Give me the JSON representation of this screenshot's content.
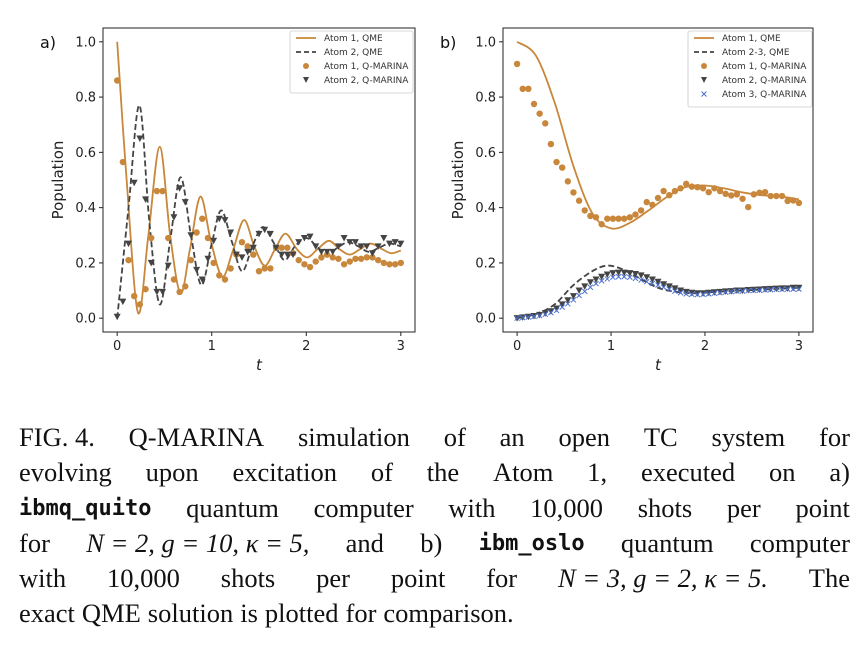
{
  "colors": {
    "atom1": "#c8873a",
    "atom2": "#444444",
    "atom3": "#4a6fd0"
  },
  "chart_data": [
    {
      "type": "line",
      "panel_label": "a)",
      "xlabel": "t",
      "ylabel": "Population",
      "xlim": [
        -0.15,
        3.15
      ],
      "ylim": [
        -0.05,
        1.05
      ],
      "xticks": [
        "0",
        "1",
        "2",
        "3"
      ],
      "xtick_values": [
        0,
        1,
        2,
        3
      ],
      "yticks": [
        "0.0",
        "0.2",
        "0.4",
        "0.6",
        "0.8",
        "1.0"
      ],
      "ytick_values": [
        0,
        0.2,
        0.4,
        0.6,
        0.8,
        1.0
      ],
      "grid": false,
      "legend_position": "top-right",
      "series": [
        {
          "name": "Atom 1, QME",
          "style": "solid",
          "color": "#c8873a",
          "x": [
            0,
            0.1,
            0.22,
            0.33,
            0.45,
            0.56,
            0.67,
            0.77,
            0.88,
            0.99,
            1.11,
            1.22,
            1.34,
            1.45,
            1.56,
            1.67,
            1.78,
            1.9,
            2.01,
            2.12,
            2.24,
            2.35,
            2.46,
            2.57,
            2.68,
            2.8,
            2.9,
            3.0
          ],
          "y": [
            1.0,
            0.5,
            0.02,
            0.3,
            0.62,
            0.3,
            0.09,
            0.25,
            0.44,
            0.28,
            0.15,
            0.24,
            0.355,
            0.26,
            0.19,
            0.25,
            0.306,
            0.25,
            0.22,
            0.25,
            0.28,
            0.25,
            0.23,
            0.25,
            0.27,
            0.25,
            0.235,
            0.245
          ]
        },
        {
          "name": "Atom 2, QME",
          "style": "dashed",
          "color": "#444444",
          "x": [
            0,
            0.12,
            0.235,
            0.34,
            0.45,
            0.56,
            0.67,
            0.78,
            0.89,
            1.0,
            1.1,
            1.21,
            1.32,
            1.43,
            1.54,
            1.66,
            1.77,
            1.88,
            2.0,
            2.11,
            2.22,
            2.33,
            2.44,
            2.55,
            2.66,
            2.77,
            2.88,
            3.0
          ],
          "y": [
            0,
            0.4,
            0.77,
            0.35,
            0.05,
            0.28,
            0.51,
            0.3,
            0.12,
            0.27,
            0.39,
            0.28,
            0.17,
            0.26,
            0.33,
            0.27,
            0.21,
            0.26,
            0.29,
            0.26,
            0.23,
            0.255,
            0.275,
            0.26,
            0.24,
            0.255,
            0.27,
            0.26
          ]
        },
        {
          "name": "Atom 1, Q-MARINA",
          "marker": "circle",
          "color": "#c8873a",
          "x": [
            0,
            0.06,
            0.12,
            0.18,
            0.24,
            0.3,
            0.36,
            0.42,
            0.48,
            0.54,
            0.6,
            0.66,
            0.72,
            0.78,
            0.84,
            0.9,
            0.96,
            1.02,
            1.08,
            1.14,
            1.2,
            1.26,
            1.32,
            1.38,
            1.44,
            1.5,
            1.56,
            1.62,
            1.68,
            1.74,
            1.8,
            1.86,
            1.92,
            1.98,
            2.04,
            2.1,
            2.16,
            2.22,
            2.28,
            2.34,
            2.4,
            2.46,
            2.52,
            2.58,
            2.64,
            2.7,
            2.76,
            2.82,
            2.88,
            2.94,
            3.0
          ],
          "y": [
            0.86,
            0.565,
            0.21,
            0.08,
            0.05,
            0.105,
            0.29,
            0.46,
            0.46,
            0.29,
            0.14,
            0.095,
            0.115,
            0.21,
            0.31,
            0.36,
            0.29,
            0.2,
            0.155,
            0.14,
            0.18,
            0.23,
            0.275,
            0.26,
            0.23,
            0.17,
            0.18,
            0.18,
            0.255,
            0.255,
            0.255,
            0.235,
            0.21,
            0.195,
            0.185,
            0.205,
            0.22,
            0.23,
            0.22,
            0.215,
            0.195,
            0.205,
            0.215,
            0.215,
            0.22,
            0.22,
            0.21,
            0.2,
            0.195,
            0.195,
            0.2
          ]
        },
        {
          "name": "Atom 2, Q-MARINA",
          "marker": "triangle-down",
          "color": "#444444",
          "x": [
            0,
            0.06,
            0.12,
            0.18,
            0.24,
            0.3,
            0.36,
            0.42,
            0.48,
            0.54,
            0.6,
            0.66,
            0.72,
            0.78,
            0.84,
            0.9,
            0.96,
            1.02,
            1.08,
            1.14,
            1.2,
            1.26,
            1.32,
            1.38,
            1.44,
            1.5,
            1.56,
            1.62,
            1.68,
            1.74,
            1.8,
            1.86,
            1.92,
            1.98,
            2.04,
            2.1,
            2.16,
            2.22,
            2.28,
            2.34,
            2.4,
            2.46,
            2.52,
            2.58,
            2.64,
            2.7,
            2.76,
            2.82,
            2.88,
            2.94,
            3.0
          ],
          "y": [
            0.005,
            0.06,
            0.27,
            0.49,
            0.65,
            0.43,
            0.2,
            0.095,
            0.095,
            0.19,
            0.365,
            0.47,
            0.42,
            0.3,
            0.175,
            0.14,
            0.215,
            0.28,
            0.36,
            0.355,
            0.31,
            0.23,
            0.22,
            0.24,
            0.255,
            0.305,
            0.32,
            0.305,
            0.255,
            0.23,
            0.23,
            0.23,
            0.275,
            0.29,
            0.295,
            0.26,
            0.24,
            0.24,
            0.24,
            0.26,
            0.29,
            0.275,
            0.275,
            0.26,
            0.26,
            0.235,
            0.26,
            0.29,
            0.27,
            0.275,
            0.27
          ]
        }
      ]
    },
    {
      "type": "line",
      "panel_label": "b)",
      "xlabel": "t",
      "ylabel": "Population",
      "xlim": [
        -0.15,
        3.15
      ],
      "ylim": [
        -0.05,
        1.05
      ],
      "xticks": [
        "0",
        "1",
        "2",
        "3"
      ],
      "xtick_values": [
        0,
        1,
        2,
        3
      ],
      "yticks": [
        "0.0",
        "0.2",
        "0.4",
        "0.6",
        "0.8",
        "1.0"
      ],
      "ytick_values": [
        0,
        0.2,
        0.4,
        0.6,
        0.8,
        1.0
      ],
      "grid": false,
      "legend_position": "top-right",
      "series": [
        {
          "name": "Atom 1, QME",
          "style": "solid",
          "color": "#c8873a",
          "x": [
            0,
            0.2,
            0.4,
            0.6,
            0.8,
            1.0,
            1.2,
            1.4,
            1.6,
            1.8,
            2.0,
            2.2,
            2.4,
            2.6,
            2.8,
            3.0
          ],
          "y": [
            1.0,
            0.95,
            0.78,
            0.55,
            0.38,
            0.325,
            0.345,
            0.39,
            0.44,
            0.475,
            0.48,
            0.47,
            0.455,
            0.445,
            0.44,
            0.43
          ]
        },
        {
          "name": "Atom 2-3, QME",
          "style": "dashed",
          "color": "#444444",
          "x": [
            0,
            0.2,
            0.4,
            0.6,
            0.8,
            0.95,
            1.1,
            1.3,
            1.5,
            1.7,
            1.9,
            2.1,
            2.4,
            2.7,
            3.0
          ],
          "y": [
            0,
            0.015,
            0.05,
            0.12,
            0.17,
            0.19,
            0.18,
            0.145,
            0.11,
            0.095,
            0.09,
            0.095,
            0.1,
            0.105,
            0.11
          ]
        },
        {
          "name": "Atom 1, Q-MARINA",
          "marker": "circle",
          "color": "#c8873a",
          "x": [
            0,
            0.06,
            0.12,
            0.18,
            0.24,
            0.3,
            0.36,
            0.42,
            0.48,
            0.54,
            0.6,
            0.66,
            0.72,
            0.78,
            0.84,
            0.9,
            0.96,
            1.02,
            1.08,
            1.14,
            1.2,
            1.26,
            1.32,
            1.38,
            1.44,
            1.5,
            1.56,
            1.62,
            1.68,
            1.74,
            1.8,
            1.86,
            1.92,
            1.98,
            2.04,
            2.1,
            2.16,
            2.22,
            2.28,
            2.34,
            2.4,
            2.46,
            2.52,
            2.58,
            2.64,
            2.7,
            2.76,
            2.82,
            2.88,
            2.94,
            3.0
          ],
          "y": [
            0.92,
            0.83,
            0.83,
            0.775,
            0.74,
            0.705,
            0.63,
            0.565,
            0.545,
            0.495,
            0.455,
            0.425,
            0.39,
            0.37,
            0.365,
            0.34,
            0.36,
            0.36,
            0.36,
            0.36,
            0.365,
            0.375,
            0.39,
            0.42,
            0.41,
            0.435,
            0.46,
            0.445,
            0.46,
            0.47,
            0.486,
            0.476,
            0.474,
            0.47,
            0.456,
            0.47,
            0.46,
            0.45,
            0.444,
            0.448,
            0.432,
            0.402,
            0.448,
            0.454,
            0.456,
            0.442,
            0.442,
            0.442,
            0.424,
            0.426,
            0.417
          ]
        },
        {
          "name": "Atom 2, Q-MARINA",
          "marker": "triangle-down",
          "color": "#444444",
          "x": [
            0,
            0.06,
            0.12,
            0.18,
            0.24,
            0.3,
            0.36,
            0.42,
            0.48,
            0.54,
            0.6,
            0.66,
            0.72,
            0.78,
            0.84,
            0.9,
            0.96,
            1.02,
            1.08,
            1.14,
            1.2,
            1.26,
            1.32,
            1.38,
            1.44,
            1.5,
            1.56,
            1.62,
            1.68,
            1.74,
            1.8,
            1.86,
            1.92,
            1.98,
            2.04,
            2.1,
            2.16,
            2.22,
            2.28,
            2.34,
            2.4,
            2.46,
            2.52,
            2.58,
            2.64,
            2.7,
            2.76,
            2.82,
            2.88,
            2.94,
            3.0
          ],
          "y": [
            0,
            0.003,
            0.005,
            0.008,
            0.012,
            0.018,
            0.025,
            0.035,
            0.05,
            0.065,
            0.08,
            0.1,
            0.115,
            0.13,
            0.14,
            0.15,
            0.158,
            0.163,
            0.165,
            0.165,
            0.163,
            0.16,
            0.155,
            0.148,
            0.14,
            0.132,
            0.123,
            0.115,
            0.108,
            0.1,
            0.095,
            0.092,
            0.09,
            0.09,
            0.092,
            0.094,
            0.095,
            0.097,
            0.098,
            0.1,
            0.1,
            0.102,
            0.103,
            0.104,
            0.105,
            0.106,
            0.107,
            0.108,
            0.108,
            0.11,
            0.11
          ]
        },
        {
          "name": "Atom 3, Q-MARINA",
          "marker": "x",
          "color": "#4a6fd0",
          "x": [
            0,
            0.06,
            0.12,
            0.18,
            0.24,
            0.3,
            0.36,
            0.42,
            0.48,
            0.54,
            0.6,
            0.66,
            0.72,
            0.78,
            0.84,
            0.9,
            0.96,
            1.02,
            1.08,
            1.14,
            1.2,
            1.26,
            1.32,
            1.38,
            1.44,
            1.5,
            1.56,
            1.62,
            1.68,
            1.74,
            1.8,
            1.86,
            1.92,
            1.98,
            2.04,
            2.1,
            2.16,
            2.22,
            2.28,
            2.34,
            2.4,
            2.46,
            2.52,
            2.58,
            2.64,
            2.7,
            2.76,
            2.82,
            2.88,
            2.94,
            3.0
          ],
          "y": [
            0,
            0.002,
            0.004,
            0.006,
            0.009,
            0.014,
            0.02,
            0.028,
            0.04,
            0.052,
            0.066,
            0.082,
            0.097,
            0.112,
            0.125,
            0.135,
            0.142,
            0.148,
            0.15,
            0.15,
            0.148,
            0.144,
            0.138,
            0.132,
            0.126,
            0.12,
            0.112,
            0.105,
            0.098,
            0.092,
            0.088,
            0.086,
            0.085,
            0.086,
            0.088,
            0.09,
            0.092,
            0.094,
            0.096,
            0.098,
            0.098,
            0.1,
            0.1,
            0.101,
            0.102,
            0.103,
            0.104,
            0.104,
            0.105,
            0.105,
            0.105
          ]
        }
      ]
    }
  ],
  "caption": {
    "lines": [
      [
        "FIG. 4.",
        "Q-MARINA",
        "simulation",
        "of",
        "an",
        "open",
        "TC",
        "system",
        "for"
      ],
      [
        "evolving",
        "upon",
        "excitation",
        "of",
        "the",
        "Atom",
        "1,",
        "executed",
        "on",
        "a)"
      ],
      [
        "ibmq_quito",
        "quantum",
        "computer",
        "with",
        "10,000",
        "shots",
        "per",
        "point"
      ],
      [
        "for",
        "N = 2, g = 10, κ = 5,",
        "and",
        "b)",
        "ibm_oslo",
        "quantum",
        "computer"
      ],
      [
        "with",
        "10,000",
        "shots",
        "per",
        "point",
        "for",
        "N = 3, g = 2, κ = 5.",
        "The"
      ],
      [
        "exact",
        "QME",
        "solution",
        "is",
        "plotted",
        "for",
        "comparison."
      ]
    ],
    "mono_words": [
      "ibmq_quito",
      "ibm_oslo"
    ],
    "math_words": [
      "N = 2, g = 10, κ = 5,",
      "N = 3, g = 2, κ = 5."
    ]
  }
}
